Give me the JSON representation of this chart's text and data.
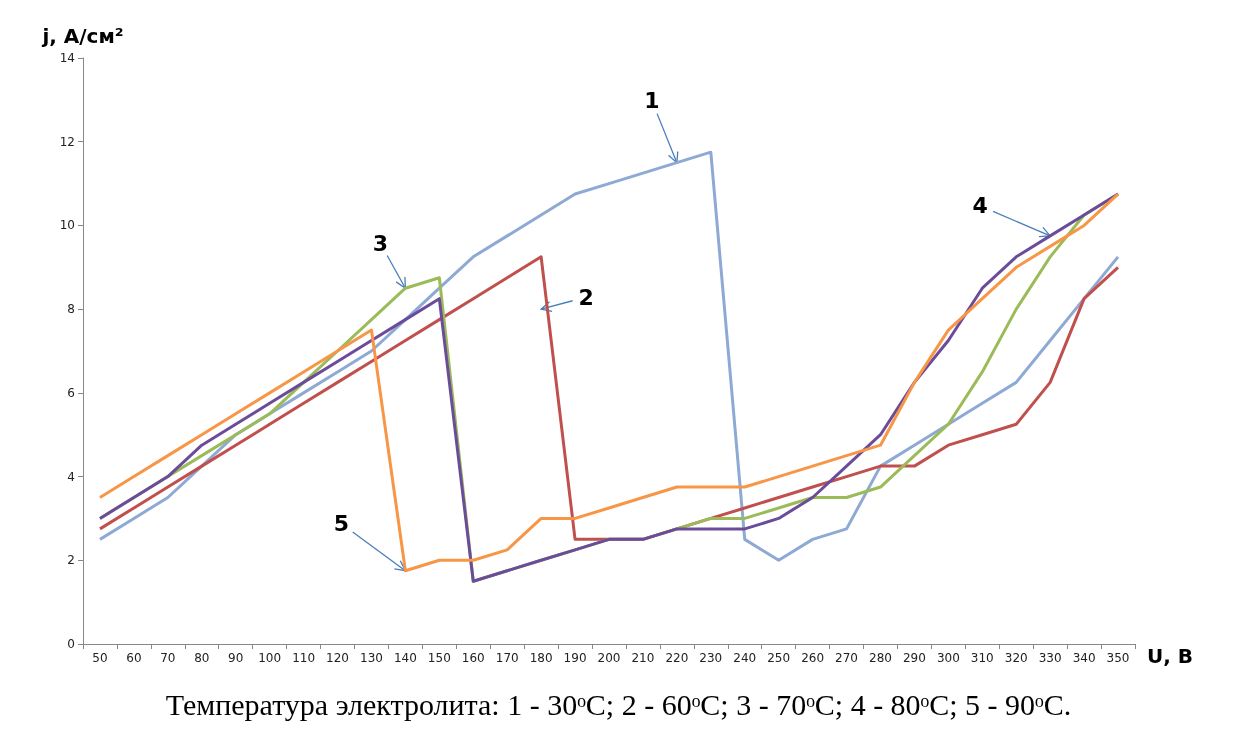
{
  "chart_data": {
    "type": "line",
    "xlabel": "U, В",
    "ylabel": "j, А/см²",
    "categories": [
      "50",
      "60",
      "70",
      "80",
      "90",
      "100",
      "110",
      "120",
      "130",
      "140",
      "150",
      "160",
      "170",
      "180",
      "190",
      "200",
      "210",
      "220",
      "230",
      "240",
      "250",
      "260",
      "270",
      "280",
      "290",
      "300",
      "310",
      "320",
      "330",
      "340",
      "350"
    ],
    "series": [
      {
        "color": "#8eaad4",
        "values": [
          2.5,
          3,
          3.5,
          4.25,
          5,
          5.5,
          6,
          6.5,
          7,
          7.75,
          8.5,
          9.25,
          9.75,
          10.25,
          10.75,
          11,
          11.25,
          11.5,
          11.75,
          2.5,
          2,
          2.5,
          2.75,
          4.25,
          4.75,
          5.25,
          5.75,
          6.25,
          7.25,
          8.25,
          9.25
        ]
      },
      {
        "color": "#c0504d",
        "values": [
          2.75,
          3.25,
          3.75,
          4.25,
          4.75,
          5.25,
          5.75,
          6.25,
          6.75,
          7.25,
          7.75,
          8.25,
          8.75,
          9.25,
          2.5,
          2.5,
          2.5,
          2.75,
          3,
          3.25,
          3.5,
          3.75,
          4,
          4.25,
          4.25,
          4.75,
          5,
          5.25,
          6.25,
          8.25,
          9
        ]
      },
      {
        "color": "#9bbb59",
        "values": [
          3,
          3.5,
          4,
          4.5,
          5,
          5.5,
          6.25,
          7,
          7.75,
          8.5,
          8.75,
          1.5,
          1.75,
          2,
          2.25,
          2.5,
          2.5,
          2.75,
          3,
          3,
          3.25,
          3.5,
          3.5,
          3.75,
          4.5,
          5.25,
          6.5,
          8,
          9.25,
          10.25,
          10.75
        ]
      },
      {
        "color": "#6b4c9a",
        "values": [
          3,
          3.5,
          4,
          4.75,
          5.25,
          5.75,
          6.25,
          6.75,
          7.25,
          7.75,
          8.25,
          1.5,
          1.75,
          2,
          2.25,
          2.5,
          2.5,
          2.75,
          2.75,
          2.75,
          3,
          3.5,
          4.25,
          5,
          6.25,
          7.25,
          8.5,
          9.25,
          9.75,
          10.25,
          10.75
        ]
      },
      {
        "color": "#f79646",
        "values": [
          3.5,
          4,
          4.5,
          5,
          5.5,
          6,
          6.5,
          7,
          7.5,
          1.75,
          2,
          2,
          2.25,
          3,
          3,
          3.25,
          3.5,
          3.75,
          3.75,
          3.75,
          4,
          4.25,
          4.5,
          4.75,
          6.25,
          7.5,
          8.25,
          9,
          9.5,
          10,
          10.75
        ]
      }
    ],
    "ylim": [
      0,
      14
    ],
    "yticks": [
      0,
      2,
      4,
      6,
      8,
      10,
      12,
      14
    ],
    "grid": false,
    "marker": "none",
    "line_style": "solid",
    "annotations": [
      {
        "text": "1",
        "x": "220",
        "y": 11.5
      },
      {
        "text": "2",
        "x": "180",
        "y": 8
      },
      {
        "text": "3",
        "x": "140",
        "y": 8.5
      },
      {
        "text": "4",
        "x": "330",
        "y": 9.75
      },
      {
        "text": "5",
        "x": "140",
        "y": 1.75
      },
      "Температура электролита: 1 - 30ᵒC; 2 - 60ᵒC; 3 - 70ᵒC; 4 - 80ᵒC; 5 - 90ᵒC."
    ]
  }
}
